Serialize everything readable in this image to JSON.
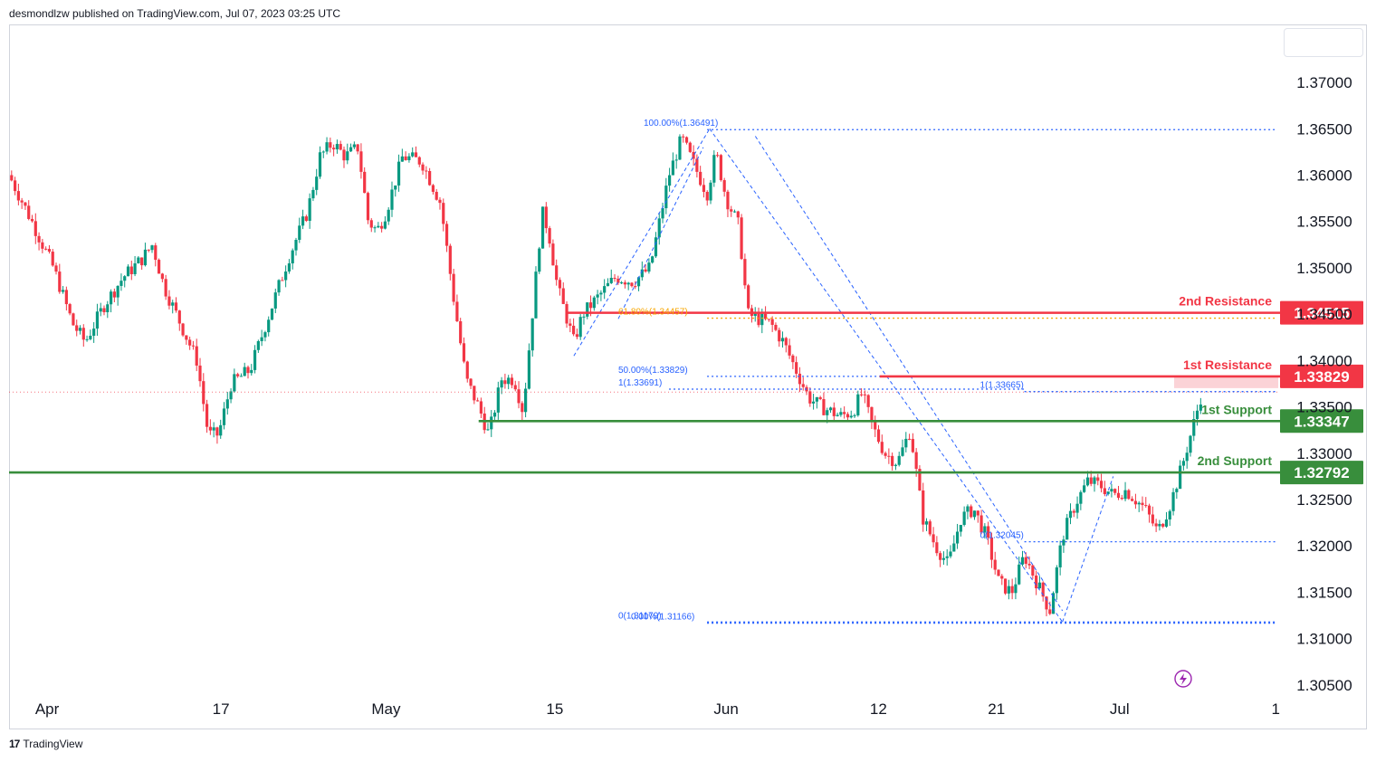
{
  "header": {
    "published": "desmondlzw published on TradingView.com, Jul 07, 2023 03:25 UTC"
  },
  "footer": {
    "brand": "TradingView",
    "logo_text": "17"
  },
  "colors": {
    "up": "#089981",
    "down": "#f23645",
    "fib": "#2962ff",
    "fib_gold": "#f7a600",
    "support": "#388e3c",
    "resistance": "#f23645",
    "text": "#131722"
  },
  "chart_data": {
    "type": "candlestick",
    "symbol_note": "",
    "ylim": [
      1.3045,
      1.3745
    ],
    "y_ticks": [
      "1.37000",
      "1.36500",
      "1.36000",
      "1.35500",
      "1.35000",
      "1.34500",
      "1.34000",
      "1.33500",
      "1.33000",
      "1.32500",
      "1.32000",
      "1.31500",
      "1.31000",
      "1.30500"
    ],
    "x_ticks": [
      {
        "label": "Apr",
        "t": 0.03
      },
      {
        "label": "17",
        "t": 0.167
      },
      {
        "label": "May",
        "t": 0.297
      },
      {
        "label": "15",
        "t": 0.43
      },
      {
        "label": "Jun",
        "t": 0.565
      },
      {
        "label": "12",
        "t": 0.685
      },
      {
        "label": "21",
        "t": 0.778
      },
      {
        "label": "Jul",
        "t": 0.875
      },
      {
        "label": "1",
        "t": 0.998
      }
    ],
    "price_path": [
      [
        0.0,
        1.36
      ],
      [
        0.018,
        1.355
      ],
      [
        0.035,
        1.35
      ],
      [
        0.05,
        1.344
      ],
      [
        0.06,
        1.342
      ],
      [
        0.075,
        1.346
      ],
      [
        0.09,
        1.349
      ],
      [
        0.105,
        1.351
      ],
      [
        0.113,
        1.3525
      ],
      [
        0.122,
        1.348
      ],
      [
        0.135,
        1.344
      ],
      [
        0.148,
        1.34
      ],
      [
        0.157,
        1.332
      ],
      [
        0.165,
        1.332
      ],
      [
        0.175,
        1.3375
      ],
      [
        0.19,
        1.339
      ],
      [
        0.205,
        1.345
      ],
      [
        0.22,
        1.351
      ],
      [
        0.235,
        1.356
      ],
      [
        0.245,
        1.362
      ],
      [
        0.255,
        1.3635
      ],
      [
        0.265,
        1.362
      ],
      [
        0.275,
        1.363
      ],
      [
        0.283,
        1.355
      ],
      [
        0.29,
        1.354
      ],
      [
        0.297,
        1.356
      ],
      [
        0.31,
        1.362
      ],
      [
        0.325,
        1.3615
      ],
      [
        0.34,
        1.357
      ],
      [
        0.35,
        1.347
      ],
      [
        0.36,
        1.338
      ],
      [
        0.37,
        1.335
      ],
      [
        0.378,
        1.332
      ],
      [
        0.388,
        1.338
      ],
      [
        0.398,
        1.338
      ],
      [
        0.405,
        1.3345
      ],
      [
        0.413,
        1.346
      ],
      [
        0.42,
        1.356
      ],
      [
        0.425,
        1.354
      ],
      [
        0.432,
        1.348
      ],
      [
        0.445,
        1.342
      ],
      [
        0.452,
        1.345
      ],
      [
        0.465,
        1.347
      ],
      [
        0.478,
        1.349
      ],
      [
        0.492,
        1.3485
      ],
      [
        0.505,
        1.35
      ],
      [
        0.52,
        1.36
      ],
      [
        0.53,
        1.364
      ],
      [
        0.54,
        1.361
      ],
      [
        0.55,
        1.358
      ],
      [
        0.557,
        1.3625
      ],
      [
        0.565,
        1.3575
      ],
      [
        0.575,
        1.3545
      ],
      [
        0.582,
        1.345
      ],
      [
        0.59,
        1.3445
      ],
      [
        0.6,
        1.344
      ],
      [
        0.61,
        1.342
      ],
      [
        0.62,
        1.339
      ],
      [
        0.63,
        1.336
      ],
      [
        0.64,
        1.335
      ],
      [
        0.655,
        1.334
      ],
      [
        0.665,
        1.3345
      ],
      [
        0.672,
        1.3365
      ],
      [
        0.68,
        1.333
      ],
      [
        0.69,
        1.33
      ],
      [
        0.7,
        1.329
      ],
      [
        0.71,
        1.3325
      ],
      [
        0.72,
        1.323
      ],
      [
        0.73,
        1.32
      ],
      [
        0.74,
        1.318
      ],
      [
        0.75,
        1.323
      ],
      [
        0.76,
        1.324
      ],
      [
        0.77,
        1.321
      ],
      [
        0.78,
        1.316
      ],
      [
        0.79,
        1.315
      ],
      [
        0.8,
        1.319
      ],
      [
        0.81,
        1.316
      ],
      [
        0.82,
        1.313
      ],
      [
        0.83,
        1.321
      ],
      [
        0.84,
        1.3245
      ],
      [
        0.85,
        1.327
      ],
      [
        0.86,
        1.3265
      ],
      [
        0.87,
        1.3255
      ],
      [
        0.88,
        1.326
      ],
      [
        0.895,
        1.324
      ],
      [
        0.905,
        1.3215
      ],
      [
        0.915,
        1.3245
      ],
      [
        0.925,
        1.329
      ],
      [
        0.935,
        1.334
      ],
      [
        0.94,
        1.3366
      ]
    ],
    "levels": [
      {
        "name": "2nd Resistance",
        "value": 1.34515,
        "price_label": "1.34515",
        "kind": "resistance",
        "x_from": 0.44
      },
      {
        "name": "1st Resistance",
        "value": 1.33829,
        "price_label": "1.33829",
        "kind": "resistance",
        "x_from": 0.686
      },
      {
        "name": "1st Support",
        "value": 1.33347,
        "price_label": "1.33347",
        "kind": "support",
        "x_from": 0.37
      },
      {
        "name": "2nd Support",
        "value": 1.32792,
        "price_label": "1.32792",
        "kind": "support",
        "x_from": 0.0
      }
    ],
    "fib_labels": [
      {
        "text": "100.00%(1.36491)",
        "value": 1.36491,
        "x_text": 0.5,
        "x_from": 0.55,
        "x_to": 0.998,
        "color": "fib"
      },
      {
        "text": "61.80%(1.34457)",
        "value": 1.34457,
        "x_text": 0.48,
        "x_from": 0.55,
        "x_to": 0.998,
        "color": "fib_gold"
      },
      {
        "text": "50.00%(1.33829)",
        "value": 1.33829,
        "x_text": 0.48,
        "x_from": 0.55,
        "x_to": 0.998,
        "color": "fib"
      },
      {
        "text": "1(1.33691)",
        "value": 1.33691,
        "x_text": 0.48,
        "x_from": 0.52,
        "x_to": 0.8,
        "color": "fib"
      },
      {
        "text": "1(1.33665)",
        "value": 1.33665,
        "x_text": 0.765,
        "x_from": 0.8,
        "x_to": 0.998,
        "color": "fib"
      },
      {
        "text": "0(1.32045)",
        "value": 1.32045,
        "x_text": 0.765,
        "x_from": 0.8,
        "x_to": 0.998,
        "color": "fib"
      },
      {
        "text": "0(1.31179)",
        "value": 1.31179,
        "x_text": 0.48,
        "x_from": 0.55,
        "x_to": 0.998,
        "color": "fib"
      },
      {
        "text": "0.00%(1.31166)",
        "value": 1.31166,
        "x_text": 0.49,
        "x_from": 0.55,
        "x_to": 0.998,
        "color": "fib"
      }
    ],
    "last_price": 1.3366,
    "grid": false
  }
}
